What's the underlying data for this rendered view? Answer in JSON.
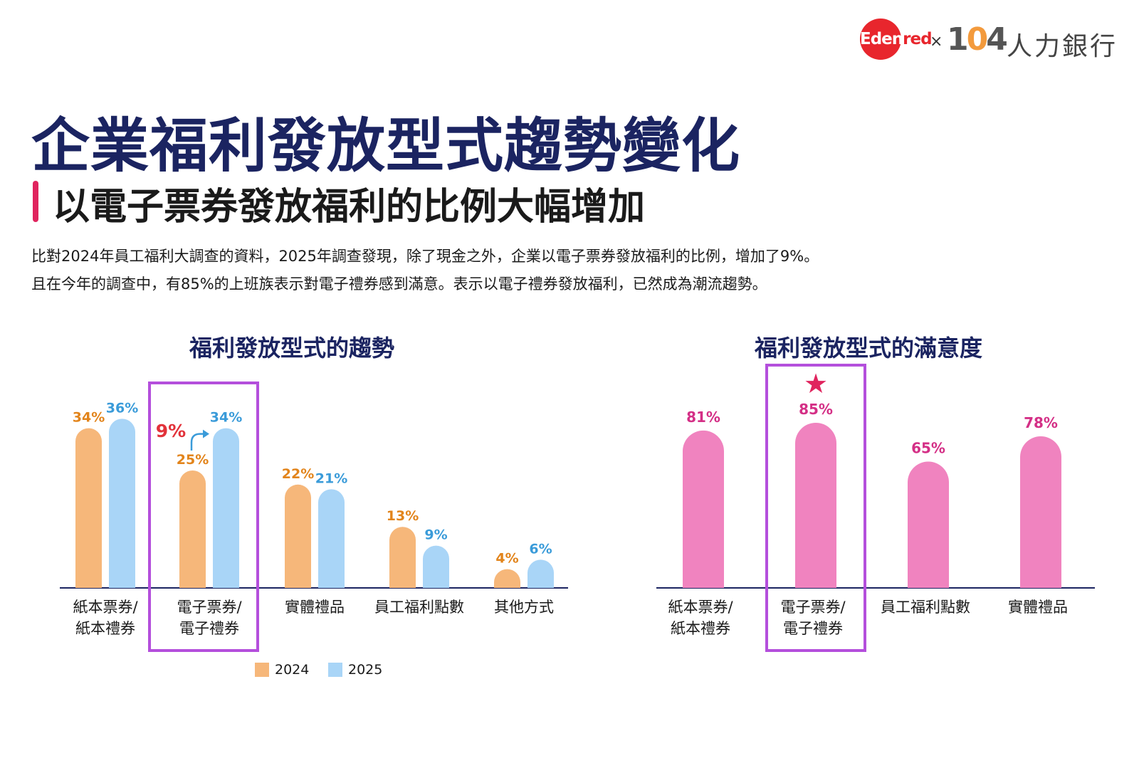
{
  "logo": {
    "edenred_main": "Eden",
    "edenred_tail": "red",
    "separator": "×",
    "brand_104_a": "1",
    "brand_104_b": "0",
    "brand_104_c": "4",
    "brand_text": "人力銀行"
  },
  "title": "企業福利發放型式趨勢變化",
  "subtitle": "以電子票券發放福利的比例大幅增加",
  "description": [
    "比對2024年員工福利大調查的資料，2025年調查發現，除了現金之外，企業以電子票券發放福利的比例，增加了9%。",
    "且在今年的調查中，有85%的上班族表示對電子禮券感到滿意。表示以電子禮券發放福利，已然成為潮流趨勢。"
  ],
  "colors": {
    "title": "#1b2461",
    "accent": "#e0245e",
    "series_2024": "#f6b77a",
    "series_2025": "#a9d5f7",
    "label_2024": "#e2841b",
    "label_2025": "#3a9bd9",
    "satisfaction": "#f083bf",
    "satisfaction_label": "#d42f86",
    "highlight_box": "#b44fdc",
    "increase": "#e2323a"
  },
  "chart_data": [
    {
      "type": "bar",
      "title": "福利發放型式的趨勢",
      "categories": [
        [
          "紙本票券/",
          "紙本禮券"
        ],
        [
          "電子票券/",
          "電子禮券"
        ],
        [
          "實體禮品"
        ],
        [
          "員工福利點數"
        ],
        [
          "其他方式"
        ]
      ],
      "series": [
        {
          "name": "2024",
          "values": [
            34,
            25,
            22,
            13,
            4
          ],
          "labels": [
            "34%",
            "25%",
            "22%",
            "13%",
            "4%"
          ]
        },
        {
          "name": "2025",
          "values": [
            36,
            34,
            21,
            9,
            6
          ],
          "labels": [
            "36%",
            "34%",
            "21%",
            "9%",
            "6%"
          ]
        }
      ],
      "unit": "%",
      "highlight_category_index": 1,
      "annotation": {
        "text": "9%",
        "category_index": 1
      },
      "legend": [
        "2024",
        "2025"
      ],
      "legend_position": "bottom"
    },
    {
      "type": "bar",
      "title": "福利發放型式的滿意度",
      "categories": [
        [
          "紙本票券/",
          "紙本禮券"
        ],
        [
          "電子票券/",
          "電子禮券"
        ],
        [
          "員工福利點數"
        ],
        [
          "實體禮品"
        ]
      ],
      "values": [
        81,
        85,
        65,
        78
      ],
      "labels": [
        "81%",
        "85%",
        "65%",
        "78%"
      ],
      "unit": "%",
      "highlight_category_index": 1,
      "star_marker": "★"
    }
  ]
}
